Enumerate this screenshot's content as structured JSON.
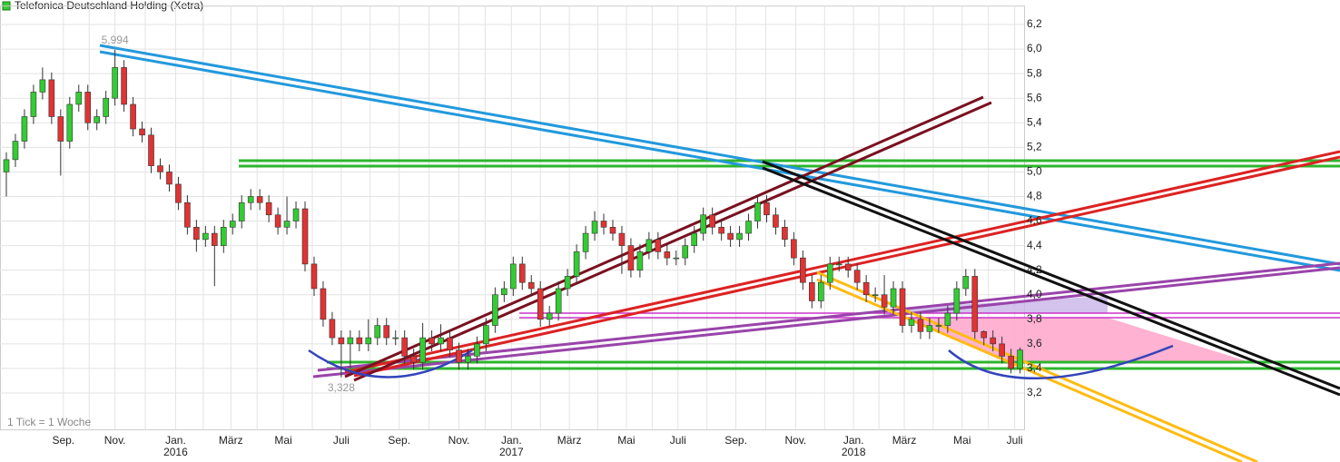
{
  "chart_data": {
    "type": "candlestick",
    "title": "Telefonica Deutschland Holding (Xetra)",
    "footnote": "1 Tick = 1 Woche",
    "up_color": "#33cc33",
    "down_color": "#e03333",
    "open": [
      5.0,
      5.1,
      5.25,
      5.45,
      5.65,
      5.75,
      5.45,
      5.25,
      5.55,
      5.65,
      5.4,
      5.45,
      5.6,
      5.85,
      5.55,
      5.35,
      5.3,
      5.05,
      5.0,
      4.9,
      4.75,
      4.55,
      4.45,
      4.5,
      4.4,
      4.55,
      4.6,
      4.75,
      4.8,
      4.75,
      4.65,
      4.55,
      4.6,
      4.7,
      4.25,
      4.05,
      3.8,
      3.65,
      3.6,
      3.65,
      3.6,
      3.65,
      3.75,
      3.65,
      3.65,
      3.5,
      3.45,
      3.65,
      3.6,
      3.65,
      3.55,
      3.45,
      3.5,
      3.6,
      3.75,
      4.0,
      4.05,
      4.25,
      4.1,
      4.05,
      3.8,
      3.85,
      4.05,
      4.15,
      4.35,
      4.5,
      4.6,
      4.55,
      4.5,
      4.4,
      4.2,
      4.35,
      4.45,
      4.35,
      4.3,
      4.3,
      4.4,
      4.5,
      4.65,
      4.55,
      4.5,
      4.45,
      4.5,
      4.6,
      4.75,
      4.65,
      4.55,
      4.45,
      4.3,
      4.1,
      3.95,
      4.1,
      4.25,
      4.25,
      4.2,
      4.1,
      4.0,
      4.0,
      3.9,
      4.05,
      3.75,
      3.8,
      3.7,
      3.75,
      3.75,
      3.85,
      4.05,
      4.15,
      3.7,
      3.65,
      3.6,
      3.5,
      3.4
    ],
    "high": [
      5.16,
      5.31,
      5.51,
      5.71,
      5.85,
      5.81,
      5.51,
      5.61,
      5.71,
      5.71,
      5.51,
      5.66,
      5.994,
      5.91,
      5.61,
      5.41,
      5.36,
      5.11,
      5.06,
      4.96,
      4.81,
      4.61,
      4.56,
      4.56,
      4.61,
      4.66,
      4.81,
      4.86,
      4.86,
      4.81,
      4.71,
      4.8,
      4.76,
      4.76,
      4.31,
      4.11,
      3.86,
      3.71,
      3.71,
      3.71,
      3.8,
      3.81,
      3.81,
      3.71,
      3.71,
      3.56,
      3.77,
      3.71,
      3.76,
      3.71,
      3.61,
      3.56,
      3.66,
      3.81,
      4.06,
      4.11,
      4.31,
      4.31,
      4.16,
      4.11,
      3.91,
      4.11,
      4.21,
      4.41,
      4.56,
      4.68,
      4.66,
      4.61,
      4.56,
      4.46,
      4.41,
      4.51,
      4.51,
      4.41,
      4.36,
      4.46,
      4.56,
      4.71,
      4.71,
      4.61,
      4.56,
      4.56,
      4.66,
      4.81,
      4.81,
      4.71,
      4.61,
      4.51,
      4.36,
      4.16,
      4.16,
      4.31,
      4.31,
      4.31,
      4.26,
      4.16,
      4.06,
      4.16,
      4.11,
      4.11,
      3.86,
      3.86,
      3.81,
      3.81,
      3.91,
      4.11,
      4.21,
      4.21,
      3.71,
      3.71,
      3.66,
      3.56,
      3.57
    ],
    "low": [
      4.8,
      5.04,
      5.19,
      5.39,
      5.59,
      5.39,
      4.97,
      5.19,
      5.49,
      5.34,
      5.34,
      5.39,
      5.54,
      5.49,
      5.29,
      5.24,
      4.99,
      4.94,
      4.84,
      4.69,
      4.49,
      4.35,
      4.39,
      4.07,
      4.34,
      4.49,
      4.54,
      4.69,
      4.69,
      4.59,
      4.49,
      4.49,
      4.54,
      4.19,
      3.99,
      3.74,
      3.59,
      3.328,
      3.4,
      3.54,
      3.54,
      3.59,
      3.59,
      3.59,
      3.44,
      3.39,
      3.39,
      3.54,
      3.54,
      3.49,
      3.39,
      3.39,
      3.44,
      3.54,
      3.69,
      3.94,
      3.99,
      4.04,
      3.99,
      3.74,
      3.74,
      3.79,
      3.99,
      4.09,
      4.29,
      4.44,
      4.49,
      4.44,
      4.17,
      4.14,
      4.14,
      4.29,
      4.29,
      4.24,
      4.24,
      4.24,
      4.34,
      4.44,
      4.49,
      4.44,
      4.39,
      4.39,
      4.44,
      4.54,
      4.59,
      4.49,
      4.39,
      4.24,
      4.04,
      3.89,
      3.89,
      4.04,
      4.19,
      4.14,
      4.04,
      3.94,
      3.94,
      3.84,
      3.84,
      3.69,
      3.69,
      3.64,
      3.64,
      3.69,
      3.69,
      3.79,
      3.99,
      3.64,
      3.59,
      3.54,
      3.44,
      3.36,
      3.36
    ],
    "close": [
      5.1,
      5.25,
      5.45,
      5.65,
      5.75,
      5.45,
      5.25,
      5.55,
      5.65,
      5.4,
      5.45,
      5.6,
      5.85,
      5.55,
      5.35,
      5.3,
      5.05,
      5.0,
      4.9,
      4.75,
      4.55,
      4.45,
      4.5,
      4.4,
      4.55,
      4.6,
      4.75,
      4.8,
      4.75,
      4.65,
      4.55,
      4.6,
      4.7,
      4.25,
      4.05,
      3.8,
      3.65,
      3.6,
      3.65,
      3.6,
      3.65,
      3.75,
      3.65,
      3.65,
      3.5,
      3.45,
      3.65,
      3.6,
      3.65,
      3.55,
      3.45,
      3.5,
      3.6,
      3.75,
      4.0,
      4.05,
      4.25,
      4.1,
      4.05,
      3.8,
      3.85,
      4.05,
      4.15,
      4.35,
      4.5,
      4.6,
      4.55,
      4.5,
      4.4,
      4.2,
      4.35,
      4.45,
      4.35,
      4.3,
      4.3,
      4.4,
      4.5,
      4.65,
      4.55,
      4.5,
      4.45,
      4.5,
      4.6,
      4.75,
      4.65,
      4.55,
      4.45,
      4.3,
      4.1,
      3.95,
      4.1,
      4.25,
      4.25,
      4.2,
      4.1,
      4.0,
      4.0,
      3.9,
      4.05,
      3.75,
      3.8,
      3.7,
      3.75,
      3.75,
      3.85,
      4.05,
      4.15,
      3.7,
      3.65,
      3.6,
      3.5,
      3.4,
      3.55
    ],
    "extremes": [
      {
        "value": 5.994,
        "label": "5,994"
      },
      {
        "value": 3.328,
        "label": "3,328"
      }
    ],
    "ylim": [
      2.9,
      6.35
    ],
    "yticks": [
      {
        "value": 3.2,
        "label": "3,2"
      },
      {
        "value": 3.4,
        "label": "3,4"
      },
      {
        "value": 3.6,
        "label": "3,6"
      },
      {
        "value": 3.8,
        "label": "3,8"
      },
      {
        "value": 4.0,
        "label": "4,0"
      },
      {
        "value": 4.2,
        "label": "4,2"
      },
      {
        "value": 4.4,
        "label": "4,4"
      },
      {
        "value": 4.6,
        "label": "4,6"
      },
      {
        "value": 4.8,
        "label": "4,8"
      },
      {
        "value": 5.0,
        "label": "5,0"
      },
      {
        "value": 5.2,
        "label": "5,2"
      },
      {
        "value": 5.4,
        "label": "5,4"
      },
      {
        "value": 5.6,
        "label": "5,6"
      },
      {
        "value": 5.8,
        "label": "5,8"
      },
      {
        "value": 6.0,
        "label": "6,0"
      },
      {
        "value": 6.2,
        "label": "6,2"
      }
    ],
    "xticks": [
      {
        "value": 6.3,
        "label": "Sep."
      },
      {
        "value": 12.0,
        "label": "Nov."
      },
      {
        "value": 18.7,
        "label": "Jan."
      },
      {
        "value": 24.8,
        "label": "März"
      },
      {
        "value": 30.6,
        "label": "Mai"
      },
      {
        "value": 37.0,
        "label": "Juli"
      },
      {
        "value": 43.4,
        "label": "Sep."
      },
      {
        "value": 50.0,
        "label": "Nov."
      },
      {
        "value": 55.8,
        "label": "Jan."
      },
      {
        "value": 62.2,
        "label": "März"
      },
      {
        "value": 68.5,
        "label": "Mai"
      },
      {
        "value": 74.2,
        "label": "Juli"
      },
      {
        "value": 80.6,
        "label": "Sep."
      },
      {
        "value": 87.2,
        "label": "Nov."
      },
      {
        "value": 93.6,
        "label": "Jan."
      },
      {
        "value": 99.2,
        "label": "März"
      },
      {
        "value": 105.6,
        "label": "Mai"
      },
      {
        "value": 111.4,
        "label": "Juli"
      }
    ],
    "year_ticks": [
      {
        "value": 18.7,
        "label": "2016"
      },
      {
        "value": 55.8,
        "label": "2017"
      },
      {
        "value": 93.6,
        "label": "2018"
      }
    ],
    "grid": true
  }
}
